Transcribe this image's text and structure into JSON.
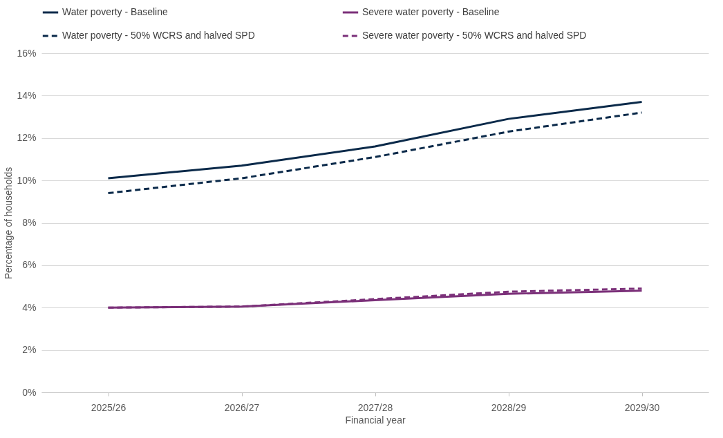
{
  "chart_data": {
    "type": "line",
    "xlabel": "Financial year",
    "ylabel": "Percentage of households",
    "categories": [
      "2025/26",
      "2026/27",
      "2027/28",
      "2028/29",
      "2029/30"
    ],
    "series": [
      {
        "name": "Water poverty - Baseline",
        "color": "#0b2a4a",
        "line_style": "solid",
        "values": [
          10.1,
          10.7,
          11.6,
          12.9,
          13.7
        ]
      },
      {
        "name": "Severe water poverty - Baseline",
        "color": "#7b3079",
        "line_style": "solid",
        "values": [
          4.0,
          4.05,
          4.35,
          4.65,
          4.8
        ]
      },
      {
        "name": "Water poverty - 50% WCRS and halved SPD",
        "color": "#0b2a4a",
        "line_style": "dashed",
        "values": [
          9.4,
          10.1,
          11.1,
          12.3,
          13.2
        ]
      },
      {
        "name": "Severe water poverty - 50% WCRS and halved SPD",
        "color": "#7b3079",
        "line_style": "dashed",
        "values": [
          4.0,
          4.05,
          4.4,
          4.75,
          4.9
        ]
      }
    ],
    "ylim": [
      0,
      16
    ],
    "yticks": [
      {
        "value": 0,
        "label": "0%"
      },
      {
        "value": 2,
        "label": "2%"
      },
      {
        "value": 4,
        "label": "4%"
      },
      {
        "value": 6,
        "label": "6%"
      },
      {
        "value": 8,
        "label": "8%"
      },
      {
        "value": 10,
        "label": "10%"
      },
      {
        "value": 12,
        "label": "12%"
      },
      {
        "value": 14,
        "label": "14%"
      },
      {
        "value": 16,
        "label": "16%"
      }
    ],
    "grid": "y",
    "legend": "top",
    "marker": "none"
  }
}
